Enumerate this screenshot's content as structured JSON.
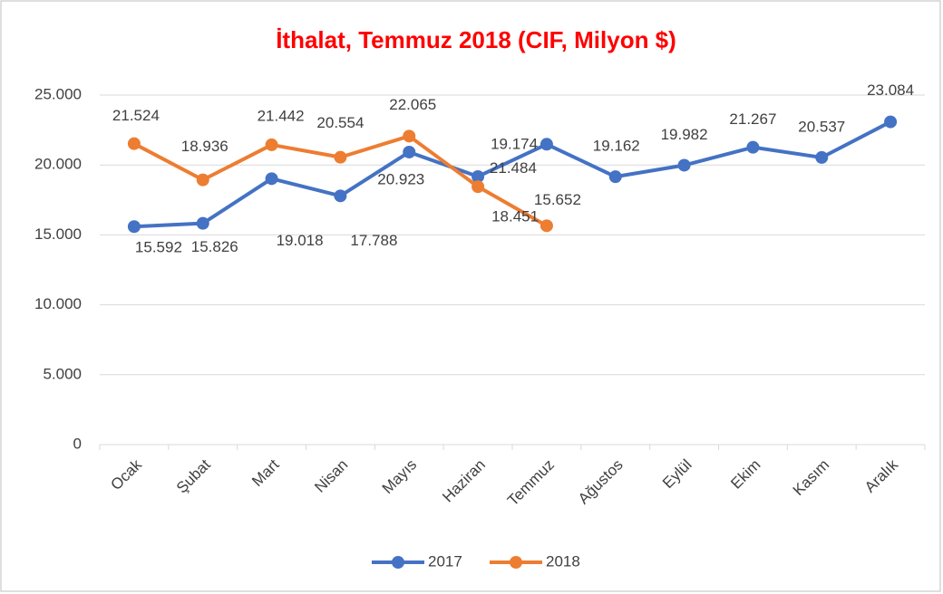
{
  "chart_data": {
    "type": "line",
    "title": "İthalat, Temmuz 2018 (CIF, Milyon $)",
    "categories": [
      "Ocak",
      "Şubat",
      "Mart",
      "Nisan",
      "Mayıs",
      "Haziran",
      "Temmuz",
      "Ağustos",
      "Eylül",
      "Ekim",
      "Kasım",
      "Aralık"
    ],
    "series": [
      {
        "name": "2017",
        "color": "#4472c4",
        "values": [
          15592,
          15826,
          19018,
          17788,
          20923,
          19174,
          21484,
          19162,
          19982,
          21267,
          20537,
          23084
        ],
        "value_labels": [
          "15.592",
          "15.826",
          "19.018",
          "17.788",
          "20.923",
          "19.174",
          "21.484",
          "19.162",
          "19.982",
          "21.267",
          "20.537",
          "23.084"
        ]
      },
      {
        "name": "2018",
        "color": "#ed7d31",
        "values": [
          21524,
          18936,
          21442,
          20554,
          22065,
          18451,
          15652,
          null,
          null,
          null,
          null,
          null
        ],
        "value_labels": [
          "21.524",
          "18.936",
          "21.442",
          "20.554",
          "22.065",
          "18.451",
          "15.652",
          null,
          null,
          null,
          null,
          null
        ]
      }
    ],
    "ylim": [
      0,
      25000
    ],
    "yticks": [
      0,
      {
        "value": 5000,
        "label": "5.000"
      },
      {
        "value": 10000,
        "label": "10.000"
      },
      {
        "value": 15000,
        "label": "15.000"
      },
      {
        "value": 20000,
        "label": "20.000"
      },
      {
        "value": 25000,
        "label": "25.000"
      }
    ],
    "grid": true,
    "legend": "bottom"
  }
}
